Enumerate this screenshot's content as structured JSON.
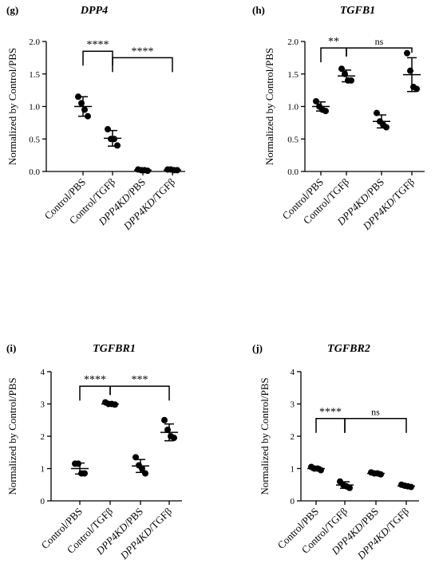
{
  "chart_data": [
    {
      "type": "scatter",
      "panel": "(g)",
      "title": "DPP4",
      "ylabel": "Normalized by Control/PBS",
      "ylim": [
        0,
        2.0
      ],
      "yticks": [
        "0.0",
        "0.5",
        "1.0",
        "1.5",
        "2.0"
      ],
      "yticks_values": [
        0,
        0.5,
        1.0,
        1.5,
        2.0
      ],
      "categories": [
        "Control/PBS",
        "Control/TGFβ",
        "DPP4KD/PBS",
        "DPP4KD/TGFβ"
      ],
      "points": [
        [
          1.15,
          1.05,
          0.95,
          0.85
        ],
        [
          0.65,
          0.5,
          0.5,
          0.4
        ],
        [
          0.03,
          0.02,
          0.02,
          0.01
        ],
        [
          0.03,
          0.03,
          0.02,
          0.02
        ]
      ],
      "mean": [
        1.0,
        0.51,
        0.02,
        0.02
      ],
      "sd": [
        0.15,
        0.12,
        0.01,
        0.01
      ],
      "comparisons": [
        {
          "from": 0,
          "to": 1,
          "label": "****",
          "y": 1.85
        },
        {
          "from": 1,
          "to": 3,
          "label": "****",
          "y": 1.75
        }
      ]
    },
    {
      "type": "scatter",
      "panel": "(h)",
      "title": "TGFB1",
      "ylabel": "Normalized by Control/PBS",
      "ylim": [
        0,
        2.0
      ],
      "yticks": [
        "0.0",
        "0.5",
        "1.0",
        "1.5",
        "2.0"
      ],
      "yticks_values": [
        0,
        0.5,
        1.0,
        1.5,
        2.0
      ],
      "categories": [
        "Control/PBS",
        "Control/TGFβ",
        "DPP4KD/PBS",
        "DPP4KD/TGFβ"
      ],
      "points": [
        [
          1.08,
          1.0,
          0.95,
          0.93
        ],
        [
          1.58,
          1.5,
          1.4,
          1.4
        ],
        [
          0.9,
          0.77,
          0.72,
          0.68
        ],
        [
          1.82,
          1.55,
          1.3,
          1.27
        ]
      ],
      "mean": [
        1.0,
        1.47,
        0.77,
        1.49
      ],
      "sd": [
        0.07,
        0.09,
        0.1,
        0.26
      ],
      "comparisons": [
        {
          "from": 0,
          "to": 1,
          "label": "**",
          "y": 1.9
        },
        {
          "from": 1,
          "to": 3,
          "label": "ns",
          "y": 1.9
        }
      ]
    },
    {
      "type": "scatter",
      "panel": "(i)",
      "title": "TGFBR1",
      "ylabel": "Normalized by Control/PBS",
      "ylim": [
        0,
        4
      ],
      "yticks": [
        "0",
        "1",
        "2",
        "3",
        "4"
      ],
      "yticks_values": [
        0,
        1,
        2,
        3,
        4
      ],
      "categories": [
        "Control/PBS",
        "Control/TGFβ",
        "DPP4KD/PBS",
        "DPP4KD/TGFβ"
      ],
      "points": [
        [
          1.15,
          1.15,
          0.85,
          0.85
        ],
        [
          3.05,
          3.0,
          3.0,
          2.98
        ],
        [
          1.35,
          1.1,
          1.0,
          0.85
        ],
        [
          2.5,
          2.2,
          2.0,
          1.95
        ]
      ],
      "mean": [
        1.0,
        3.0,
        1.08,
        2.12
      ],
      "sd": [
        0.17,
        0.03,
        0.2,
        0.26
      ],
      "comparisons": [
        {
          "from": 0,
          "to": 1,
          "label": "****",
          "y": 3.55
        },
        {
          "from": 1,
          "to": 3,
          "label": "***",
          "y": 3.55
        }
      ]
    },
    {
      "type": "scatter",
      "panel": "(j)",
      "title": "TGFBR2",
      "ylabel": "Normalized by Control/PBS",
      "ylim": [
        0,
        4
      ],
      "yticks": [
        "0",
        "1",
        "2",
        "3",
        "4"
      ],
      "yticks_values": [
        0,
        1,
        2,
        3,
        4
      ],
      "categories": [
        "Control/PBS",
        "Control/TGFβ",
        "DPP4KD/PBS",
        "DPP4KD/TGFβ"
      ],
      "points": [
        [
          1.05,
          1.0,
          1.0,
          0.95
        ],
        [
          0.6,
          0.5,
          0.45,
          0.4
        ],
        [
          0.88,
          0.85,
          0.85,
          0.82
        ],
        [
          0.5,
          0.47,
          0.45,
          0.43
        ]
      ],
      "mean": [
        1.0,
        0.49,
        0.85,
        0.46
      ],
      "sd": [
        0.05,
        0.1,
        0.03,
        0.04
      ],
      "comparisons": [
        {
          "from": 0,
          "to": 1,
          "label": "****",
          "y": 2.55
        },
        {
          "from": 1,
          "to": 3,
          "label": "ns",
          "y": 2.55
        }
      ]
    }
  ]
}
